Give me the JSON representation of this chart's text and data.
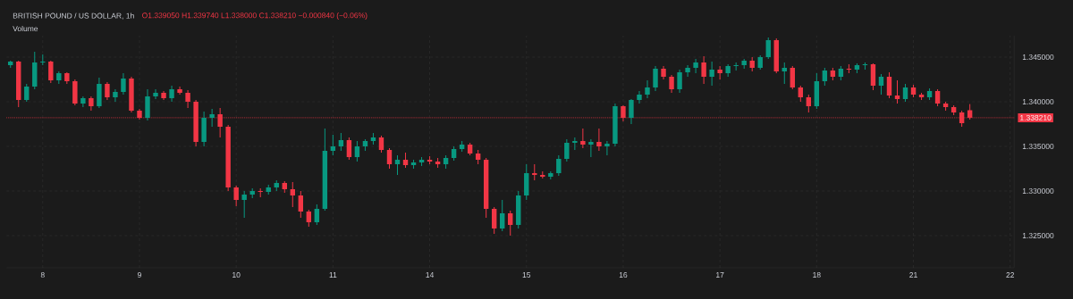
{
  "chart_data": {
    "type": "candlestick",
    "title": "BRITISH POUND / US DOLLAR, 1h",
    "annotations": [
      "O1.339050 H1.339740 L1.338000 C1.338210 −0.000840 (−0.06%)",
      "Volume"
    ],
    "categories": [
      null,
      null,
      null,
      null,
      "8",
      null,
      null,
      null,
      null,
      null,
      null,
      null,
      null,
      null,
      null,
      null,
      "9",
      null,
      null,
      null,
      null,
      null,
      null,
      null,
      null,
      null,
      null,
      null,
      "10",
      null,
      null,
      null,
      null,
      null,
      null,
      null,
      null,
      null,
      null,
      null,
      "11",
      null,
      null,
      null,
      null,
      null,
      null,
      null,
      null,
      null,
      null,
      null,
      "14",
      null,
      null,
      null,
      null,
      null,
      null,
      null,
      null,
      null,
      null,
      null,
      "15",
      null,
      null,
      null,
      null,
      null,
      null,
      null,
      null,
      null,
      null,
      null,
      "16",
      null,
      null,
      null,
      null,
      null,
      null,
      null,
      null,
      null,
      null,
      null,
      "17",
      null,
      null,
      null,
      null,
      null,
      null,
      null,
      null,
      null,
      null,
      null,
      "18",
      null,
      null,
      null,
      null,
      null,
      null,
      null,
      null,
      null,
      null,
      null,
      "21",
      null,
      null,
      null,
      null,
      null,
      null,
      null,
      null,
      null,
      null,
      null,
      "22"
    ],
    "ohlc": [
      [
        1.3441,
        1.3446,
        1.3438,
        1.3445
      ],
      [
        1.3445,
        1.3446,
        1.3394,
        1.3402
      ],
      [
        1.3402,
        1.342,
        1.34,
        1.3417
      ],
      [
        1.3417,
        1.3456,
        1.3414,
        1.3444
      ],
      [
        1.3444,
        1.3453,
        1.3441,
        1.3445
      ],
      [
        1.3445,
        1.3446,
        1.3421,
        1.3424
      ],
      [
        1.3424,
        1.3434,
        1.342,
        1.3432
      ],
      [
        1.3432,
        1.3433,
        1.342,
        1.3423
      ],
      [
        1.3423,
        1.3425,
        1.3396,
        1.3398
      ],
      [
        1.3398,
        1.3406,
        1.3394,
        1.3404
      ],
      [
        1.3404,
        1.3406,
        1.339,
        1.3395
      ],
      [
        1.3395,
        1.3427,
        1.3393,
        1.342
      ],
      [
        1.342,
        1.3422,
        1.3402,
        1.3405
      ],
      [
        1.3405,
        1.3414,
        1.34,
        1.3411
      ],
      [
        1.3411,
        1.3432,
        1.3408,
        1.3426
      ],
      [
        1.3426,
        1.3428,
        1.3388,
        1.339
      ],
      [
        1.339,
        1.3392,
        1.338,
        1.3382
      ],
      [
        1.3382,
        1.3414,
        1.3379,
        1.3406
      ],
      [
        1.3406,
        1.3414,
        1.3403,
        1.341
      ],
      [
        1.341,
        1.3412,
        1.3402,
        1.3404
      ],
      [
        1.3404,
        1.3418,
        1.34,
        1.3414
      ],
      [
        1.3414,
        1.3417,
        1.3408,
        1.341
      ],
      [
        1.341,
        1.3413,
        1.3393,
        1.34
      ],
      [
        1.34,
        1.3402,
        1.335,
        1.3355
      ],
      [
        1.3355,
        1.3389,
        1.335,
        1.3382
      ],
      [
        1.3382,
        1.3392,
        1.3372,
        1.3386
      ],
      [
        1.3386,
        1.3393,
        1.336,
        1.3372
      ],
      [
        1.3372,
        1.3374,
        1.33,
        1.3304
      ],
      [
        1.3304,
        1.3306,
        1.3283,
        1.329
      ],
      [
        1.329,
        1.33,
        1.327,
        1.3296
      ],
      [
        1.3296,
        1.3303,
        1.3292,
        1.33
      ],
      [
        1.33,
        1.3303,
        1.3293,
        1.3299
      ],
      [
        1.3299,
        1.3307,
        1.3296,
        1.3304
      ],
      [
        1.3304,
        1.3312,
        1.33,
        1.3309
      ],
      [
        1.3309,
        1.3311,
        1.3298,
        1.3302
      ],
      [
        1.3302,
        1.331,
        1.3282,
        1.3295
      ],
      [
        1.3295,
        1.33,
        1.327,
        1.3277
      ],
      [
        1.3277,
        1.3279,
        1.326,
        1.3265
      ],
      [
        1.3265,
        1.3285,
        1.3262,
        1.328
      ],
      [
        1.328,
        1.337,
        1.3278,
        1.3345
      ],
      [
        1.3345,
        1.3363,
        1.334,
        1.335
      ],
      [
        1.335,
        1.3365,
        1.3345,
        1.3357
      ],
      [
        1.3357,
        1.336,
        1.3335,
        1.3338
      ],
      [
        1.3338,
        1.3356,
        1.3333,
        1.335
      ],
      [
        1.335,
        1.3358,
        1.3345,
        1.3356
      ],
      [
        1.3356,
        1.3365,
        1.3352,
        1.336
      ],
      [
        1.336,
        1.3362,
        1.3343,
        1.3346
      ],
      [
        1.3346,
        1.3348,
        1.3325,
        1.333
      ],
      [
        1.333,
        1.334,
        1.3318,
        1.3335
      ],
      [
        1.3335,
        1.3343,
        1.3326,
        1.3329
      ],
      [
        1.3329,
        1.3335,
        1.3325,
        1.3332
      ],
      [
        1.3332,
        1.3338,
        1.3328,
        1.3335
      ],
      [
        1.3335,
        1.3339,
        1.333,
        1.3333
      ],
      [
        1.3333,
        1.3337,
        1.3326,
        1.333
      ],
      [
        1.333,
        1.334,
        1.3325,
        1.3337
      ],
      [
        1.3337,
        1.335,
        1.3334,
        1.3347
      ],
      [
        1.3347,
        1.3356,
        1.3344,
        1.3352
      ],
      [
        1.3352,
        1.3354,
        1.334,
        1.3342
      ],
      [
        1.3342,
        1.3346,
        1.333,
        1.3335
      ],
      [
        1.3335,
        1.3337,
        1.327,
        1.328
      ],
      [
        1.328,
        1.3282,
        1.3252,
        1.3258
      ],
      [
        1.3258,
        1.329,
        1.3255,
        1.3275
      ],
      [
        1.3275,
        1.3278,
        1.325,
        1.3262
      ],
      [
        1.3262,
        1.33,
        1.3258,
        1.3295
      ],
      [
        1.3295,
        1.333,
        1.329,
        1.332
      ],
      [
        1.332,
        1.333,
        1.3312,
        1.3318
      ],
      [
        1.3318,
        1.3322,
        1.3314,
        1.3316
      ],
      [
        1.3316,
        1.3322,
        1.3313,
        1.332
      ],
      [
        1.332,
        1.334,
        1.3317,
        1.3336
      ],
      [
        1.3336,
        1.3358,
        1.3333,
        1.3354
      ],
      [
        1.3354,
        1.336,
        1.3346,
        1.3356
      ],
      [
        1.3356,
        1.337,
        1.3348,
        1.3352
      ],
      [
        1.3352,
        1.3358,
        1.3338,
        1.3355
      ],
      [
        1.3355,
        1.337,
        1.3345,
        1.335
      ],
      [
        1.335,
        1.3356,
        1.334,
        1.3353
      ],
      [
        1.3353,
        1.3398,
        1.335,
        1.3395
      ],
      [
        1.3395,
        1.3396,
        1.3378,
        1.3382
      ],
      [
        1.3382,
        1.3403,
        1.3375,
        1.3402
      ],
      [
        1.3402,
        1.3412,
        1.3398,
        1.3408
      ],
      [
        1.3408,
        1.3424,
        1.3404,
        1.3416
      ],
      [
        1.3416,
        1.344,
        1.3412,
        1.3437
      ],
      [
        1.3437,
        1.344,
        1.3425,
        1.3428
      ],
      [
        1.3428,
        1.343,
        1.341,
        1.3414
      ],
      [
        1.3414,
        1.3436,
        1.341,
        1.3433
      ],
      [
        1.3433,
        1.3441,
        1.3428,
        1.3438
      ],
      [
        1.3438,
        1.3448,
        1.3432,
        1.3444
      ],
      [
        1.3444,
        1.3451,
        1.342,
        1.3428
      ],
      [
        1.3428,
        1.3445,
        1.3418,
        1.3436
      ],
      [
        1.3436,
        1.344,
        1.3425,
        1.3432
      ],
      [
        1.3432,
        1.3442,
        1.3428,
        1.344
      ],
      [
        1.344,
        1.3444,
        1.3435,
        1.3441
      ],
      [
        1.3441,
        1.3448,
        1.3437,
        1.3446
      ],
      [
        1.3446,
        1.345,
        1.3434,
        1.3438
      ],
      [
        1.3438,
        1.3452,
        1.3436,
        1.345
      ],
      [
        1.345,
        1.3472,
        1.3448,
        1.3469
      ],
      [
        1.3469,
        1.3471,
        1.3432,
        1.3434
      ],
      [
        1.3434,
        1.3444,
        1.342,
        1.3438
      ],
      [
        1.3438,
        1.344,
        1.3414,
        1.3416
      ],
      [
        1.3416,
        1.3418,
        1.34,
        1.3405
      ],
      [
        1.3405,
        1.3408,
        1.3388,
        1.3395
      ],
      [
        1.3395,
        1.3432,
        1.3392,
        1.3423
      ],
      [
        1.3423,
        1.3438,
        1.3418,
        1.3435
      ],
      [
        1.3435,
        1.3438,
        1.3424,
        1.3428
      ],
      [
        1.3428,
        1.344,
        1.3424,
        1.3437
      ],
      [
        1.3437,
        1.3442,
        1.3432,
        1.3436
      ],
      [
        1.3436,
        1.3443,
        1.3432,
        1.3441
      ],
      [
        1.3441,
        1.3444,
        1.3436,
        1.3442
      ],
      [
        1.3442,
        1.3443,
        1.3413,
        1.3418
      ],
      [
        1.3418,
        1.3431,
        1.3408,
        1.3428
      ],
      [
        1.3428,
        1.3433,
        1.3404,
        1.3407
      ],
      [
        1.3407,
        1.3424,
        1.3398,
        1.3403
      ],
      [
        1.3403,
        1.342,
        1.34,
        1.3416
      ],
      [
        1.3416,
        1.3419,
        1.3405,
        1.3408
      ],
      [
        1.3408,
        1.341,
        1.3402,
        1.3405
      ],
      [
        1.3405,
        1.3415,
        1.3402,
        1.3412
      ],
      [
        1.3412,
        1.3414,
        1.3395,
        1.3398
      ],
      [
        1.3398,
        1.34,
        1.339,
        1.3394
      ],
      [
        1.3394,
        1.3396,
        1.3385,
        1.3388
      ],
      [
        1.3388,
        1.339,
        1.3372,
        1.3376
      ],
      [
        1.33905,
        1.33974,
        1.338,
        1.33821
      ],
      null,
      null,
      null,
      null,
      null
    ],
    "ylim": [
      1.3214,
      1.3474
    ],
    "yticks": [
      {
        "value": 1.325,
        "label": "1.325000"
      },
      {
        "value": 1.33,
        "label": "1.330000"
      },
      {
        "value": 1.335,
        "label": "1.335000"
      },
      {
        "value": 1.34,
        "label": "1.340000"
      },
      {
        "value": 1.345,
        "label": "1.345000"
      }
    ],
    "ref_lines": [
      {
        "axis": "y",
        "value": 1.33821,
        "label": "1.338210",
        "color": "#f23645",
        "line_style": "dotted"
      }
    ],
    "grid": true
  }
}
